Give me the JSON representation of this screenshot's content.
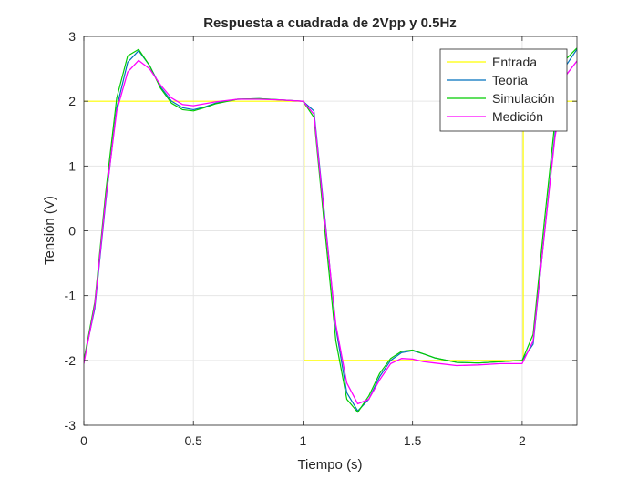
{
  "chart_data": {
    "type": "line",
    "title": "Respuesta a cuadrada de 2Vpp y 0.5Hz",
    "xlabel": "Tiempo (s)",
    "ylabel": "Tensión (V)",
    "xlim": [
      0,
      2.25
    ],
    "ylim": [
      -3,
      3
    ],
    "xticks": [
      0,
      0.5,
      1,
      1.5,
      2
    ],
    "xtick_labels": [
      "0",
      "0.5",
      "1",
      "1.5",
      "2"
    ],
    "yticks": [
      -3,
      -2,
      -1,
      0,
      1,
      2,
      3
    ],
    "ytick_labels": [
      "-3",
      "-2",
      "-1",
      "0",
      "1",
      "2",
      "3"
    ],
    "grid": true,
    "legend_position": "top-right",
    "series": [
      {
        "name": "Entrada",
        "color": "#ffff00",
        "x": [
          0,
          1.005,
          1.005,
          2.005,
          2.005,
          2.25
        ],
        "y": [
          2,
          2,
          -2,
          -2,
          2,
          2
        ]
      },
      {
        "name": "Teoría",
        "color": "#0072bd",
        "x": [
          0,
          0.05,
          0.1,
          0.15,
          0.2,
          0.25,
          0.3,
          0.35,
          0.4,
          0.45,
          0.5,
          0.55,
          0.6,
          0.7,
          0.8,
          0.9,
          1.0,
          1.05,
          1.1,
          1.15,
          1.2,
          1.25,
          1.3,
          1.35,
          1.4,
          1.45,
          1.5,
          1.55,
          1.6,
          1.7,
          1.8,
          1.9,
          2.0,
          2.05,
          2.1,
          2.15,
          2.2,
          2.25
        ],
        "y": [
          -2.0,
          -1.2,
          0.45,
          1.9,
          2.6,
          2.78,
          2.55,
          2.22,
          2.0,
          1.9,
          1.87,
          1.91,
          1.97,
          2.03,
          2.04,
          2.02,
          2.0,
          1.85,
          0.2,
          -1.5,
          -2.5,
          -2.78,
          -2.6,
          -2.25,
          -2.0,
          -1.88,
          -1.85,
          -1.9,
          -1.96,
          -2.03,
          -2.04,
          -2.02,
          -2.0,
          -1.75,
          -0.1,
          1.5,
          2.55,
          2.8
        ]
      },
      {
        "name": "Simulación",
        "color": "#00cc00",
        "x": [
          0,
          0.05,
          0.1,
          0.15,
          0.2,
          0.25,
          0.3,
          0.35,
          0.4,
          0.45,
          0.5,
          0.55,
          0.6,
          0.7,
          0.8,
          0.9,
          1.0,
          1.05,
          1.1,
          1.15,
          1.2,
          1.25,
          1.3,
          1.35,
          1.4,
          1.45,
          1.5,
          1.55,
          1.6,
          1.7,
          1.8,
          1.9,
          2.0,
          2.05,
          2.1,
          2.15,
          2.2,
          2.25
        ],
        "y": [
          -2.0,
          -1.1,
          0.6,
          2.05,
          2.7,
          2.8,
          2.55,
          2.2,
          1.97,
          1.87,
          1.85,
          1.9,
          1.96,
          2.03,
          2.04,
          2.02,
          2.0,
          1.75,
          0.0,
          -1.7,
          -2.6,
          -2.8,
          -2.55,
          -2.2,
          -1.97,
          -1.86,
          -1.84,
          -1.9,
          -1.96,
          -2.03,
          -2.04,
          -2.02,
          -2.0,
          -1.6,
          0.1,
          1.7,
          2.65,
          2.82
        ]
      },
      {
        "name": "Medición",
        "color": "#ff00ff",
        "x": [
          0,
          0.05,
          0.1,
          0.15,
          0.2,
          0.25,
          0.3,
          0.35,
          0.4,
          0.45,
          0.5,
          0.55,
          0.6,
          0.7,
          0.8,
          0.9,
          1.0,
          1.05,
          1.1,
          1.15,
          1.2,
          1.25,
          1.3,
          1.35,
          1.4,
          1.45,
          1.5,
          1.55,
          1.6,
          1.7,
          1.8,
          1.9,
          2.0,
          2.05,
          2.1,
          2.15,
          2.2,
          2.25
        ],
        "y": [
          -2.05,
          -1.15,
          0.5,
          1.85,
          2.45,
          2.63,
          2.5,
          2.25,
          2.05,
          1.95,
          1.93,
          1.96,
          1.99,
          2.03,
          2.03,
          2.02,
          2.0,
          1.8,
          0.15,
          -1.45,
          -2.35,
          -2.67,
          -2.6,
          -2.3,
          -2.05,
          -1.97,
          -1.98,
          -2.02,
          -2.04,
          -2.08,
          -2.07,
          -2.05,
          -2.05,
          -1.7,
          -0.1,
          1.45,
          2.4,
          2.62
        ]
      }
    ]
  }
}
